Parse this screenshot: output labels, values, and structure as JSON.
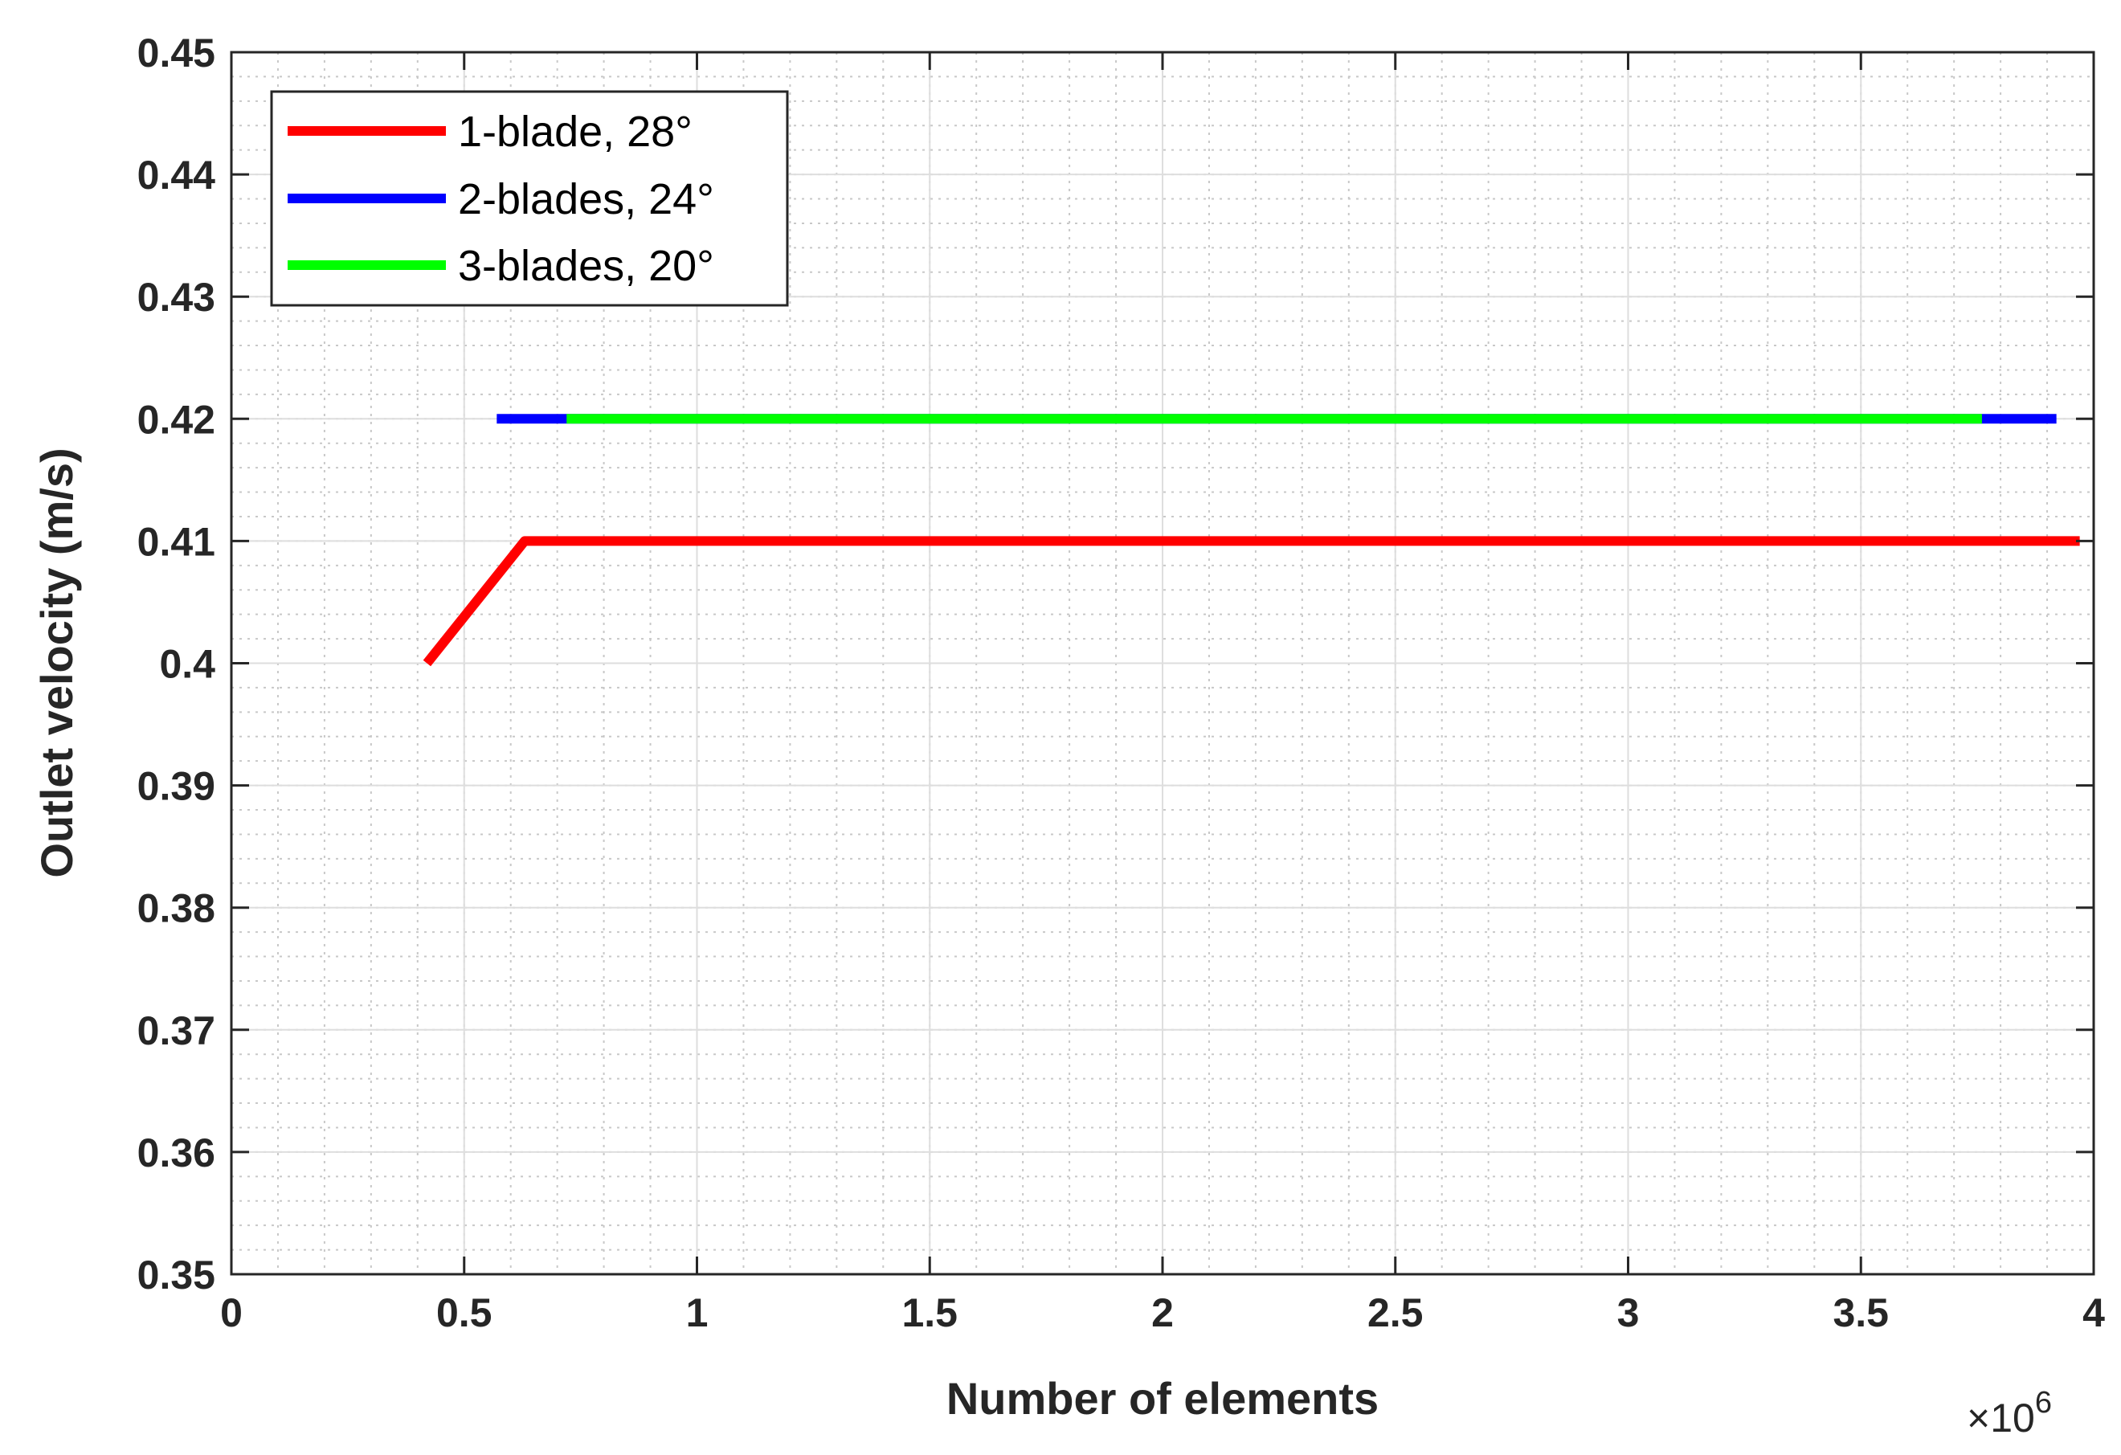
{
  "chart_data": {
    "type": "line",
    "xlabel": "Number of elements",
    "ylabel": "Outlet velocity (m/s)",
    "x_multiplier": "×10",
    "x_multiplier_exp": "6",
    "xlim": [
      0,
      4000000
    ],
    "ylim": [
      0.35,
      0.45
    ],
    "x_ticks": [
      0,
      500000,
      1000000,
      1500000,
      2000000,
      2500000,
      3000000,
      3500000,
      4000000
    ],
    "x_tick_labels": [
      "0",
      "0.5",
      "1",
      "1.5",
      "2",
      "2.5",
      "3",
      "3.5",
      "4"
    ],
    "y_ticks": [
      0.35,
      0.36,
      0.37,
      0.38,
      0.39,
      0.4,
      0.41,
      0.42,
      0.43,
      0.44,
      0.45
    ],
    "y_tick_labels": [
      "0.35",
      "0.36",
      "0.37",
      "0.38",
      "0.39",
      "0.4",
      "0.41",
      "0.42",
      "0.43",
      "0.44",
      "0.45"
    ],
    "grid": true,
    "minor_grid": true,
    "legend_position": "top-left",
    "series": [
      {
        "name": "1-blade, 28°",
        "color": "#ff0000",
        "x": [
          420000,
          630000,
          3970000
        ],
        "y": [
          0.4,
          0.41,
          0.41
        ]
      },
      {
        "name": "2-blades, 24°",
        "color": "#0000ff",
        "x": [
          570000,
          3920000
        ],
        "y": [
          0.42,
          0.42
        ]
      },
      {
        "name": "3-blades, 20°",
        "color": "#00ff00",
        "x": [
          720000,
          3760000
        ],
        "y": [
          0.42,
          0.42
        ]
      }
    ]
  }
}
